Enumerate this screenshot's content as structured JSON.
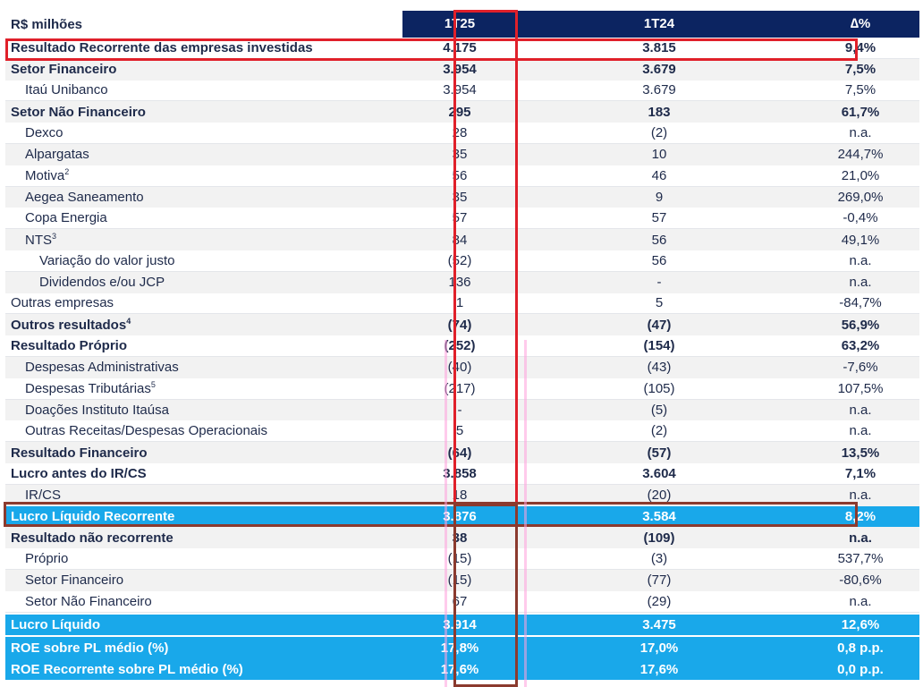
{
  "table": {
    "header": {
      "label": "R$ milhões",
      "col1": "1T25",
      "col2": "1T24",
      "col3": "∆%"
    },
    "rows": [
      {
        "label": "Resultado Recorrente das empresas investidas",
        "sup": "",
        "c1": "4.175",
        "c2": "3.815",
        "c3": "9,4%"
      },
      {
        "label": "Setor Financeiro",
        "sup": "",
        "c1": "3.954",
        "c2": "3.679",
        "c3": "7,5%"
      },
      {
        "label": "Itaú Unibanco",
        "sup": "",
        "c1": "3.954",
        "c2": "3.679",
        "c3": "7,5%"
      },
      {
        "label": "Setor Não Financeiro",
        "sup": "",
        "c1": "295",
        "c2": "183",
        "c3": "61,7%"
      },
      {
        "label": "Dexco",
        "sup": "",
        "c1": "28",
        "c2": "(2)",
        "c3": "n.a."
      },
      {
        "label": "Alpargatas",
        "sup": "",
        "c1": "35",
        "c2": "10",
        "c3": "244,7%"
      },
      {
        "label": "Motiva",
        "sup": "2",
        "c1": "56",
        "c2": "46",
        "c3": "21,0%"
      },
      {
        "label": "Aegea Saneamento",
        "sup": "",
        "c1": "35",
        "c2": "9",
        "c3": "269,0%"
      },
      {
        "label": "Copa Energia",
        "sup": "",
        "c1": "57",
        "c2": "57",
        "c3": "-0,4%"
      },
      {
        "label": "NTS",
        "sup": "3",
        "c1": "84",
        "c2": "56",
        "c3": "49,1%"
      },
      {
        "label": "Variação do valor justo",
        "sup": "",
        "c1": "(52)",
        "c2": "56",
        "c3": "n.a."
      },
      {
        "label": "Dividendos e/ou JCP",
        "sup": "",
        "c1": "136",
        "c2": "-",
        "c3": "n.a."
      },
      {
        "label": "Outras empresas",
        "sup": "",
        "c1": "1",
        "c2": "5",
        "c3": "-84,7%"
      },
      {
        "label": "Outros resultados",
        "sup": "4",
        "c1": "(74)",
        "c2": "(47)",
        "c3": "56,9%"
      },
      {
        "label": "Resultado Próprio",
        "sup": "",
        "c1": "(252)",
        "c2": "(154)",
        "c3": "63,2%"
      },
      {
        "label": "Despesas Administrativas",
        "sup": "",
        "c1": "(40)",
        "c2": "(43)",
        "c3": "-7,6%"
      },
      {
        "label": "Despesas Tributárias",
        "sup": "5",
        "c1": "(217)",
        "c2": "(105)",
        "c3": "107,5%"
      },
      {
        "label": "Doações Instituto Itaúsa",
        "sup": "",
        "c1": "-",
        "c2": "(5)",
        "c3": "n.a."
      },
      {
        "label": "Outras Receitas/Despesas Operacionais",
        "sup": "",
        "c1": "5",
        "c2": "(2)",
        "c3": "n.a."
      },
      {
        "label": "Resultado Financeiro",
        "sup": "",
        "c1": "(64)",
        "c2": "(57)",
        "c3": "13,5%"
      },
      {
        "label": "Lucro antes do IR/CS",
        "sup": "",
        "c1": "3.858",
        "c2": "3.604",
        "c3": "7,1%"
      },
      {
        "label": "IR/CS",
        "sup": "",
        "c1": "18",
        "c2": "(20)",
        "c3": "n.a."
      },
      {
        "label": "Lucro Líquido Recorrente",
        "sup": "",
        "c1": "3.876",
        "c2": "3.584",
        "c3": "8,2%"
      },
      {
        "label": "Resultado não recorrente",
        "sup": "",
        "c1": "38",
        "c2": "(109)",
        "c3": "n.a."
      },
      {
        "label": "Próprio",
        "sup": "",
        "c1": "(15)",
        "c2": "(3)",
        "c3": "537,7%"
      },
      {
        "label": "Setor Financeiro",
        "sup": "",
        "c1": "(15)",
        "c2": "(77)",
        "c3": "-80,6%"
      },
      {
        "label": "Setor Não Financeiro",
        "sup": "",
        "c1": "67",
        "c2": "(29)",
        "c3": "n.a."
      },
      {
        "label": "Lucro Líquido",
        "sup": "",
        "c1": "3.914",
        "c2": "3.475",
        "c3": "12,6%"
      },
      {
        "label": "ROE sobre PL médio (%)",
        "sup": "",
        "c1": "17,8%",
        "c2": "17,0%",
        "c3": "0,8 p.p."
      },
      {
        "label": "ROE Recorrente sobre PL médio (%)",
        "sup": "",
        "c1": "17,6%",
        "c2": "17,6%",
        "c3": "0,0 p.p."
      }
    ]
  },
  "colors": {
    "header_bg": "#0c2461",
    "highlight_bg": "#19a8ea",
    "text": "#1e2a4a",
    "annotation_red": "#e0202a",
    "annotation_brown": "#8b3a2e"
  }
}
